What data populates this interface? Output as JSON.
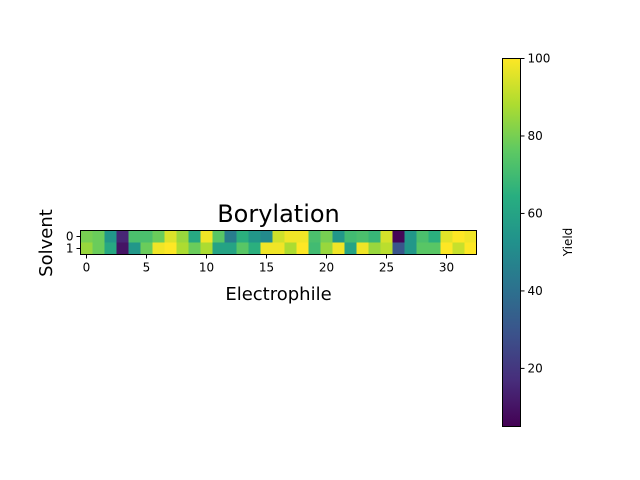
{
  "chart_data": {
    "type": "heatmap",
    "title": "Borylation",
    "xlabel": "Electrophile",
    "ylabel": "Solvent",
    "colorbar_label": "Yield",
    "colormap": "viridis",
    "vmin": 5,
    "vmax": 100,
    "x_ticks": [
      0,
      5,
      10,
      15,
      20,
      25,
      30
    ],
    "y_ticks": [
      0,
      1
    ],
    "colorbar_ticks": [
      20,
      40,
      60,
      80,
      100
    ],
    "rows": [
      {
        "label": "0",
        "values": [
          80,
          78,
          55,
          15,
          72,
          72,
          78,
          95,
          85,
          62,
          98,
          75,
          45,
          65,
          55,
          50,
          93,
          98,
          98,
          72,
          80,
          55,
          70,
          72,
          68,
          94,
          6,
          55,
          72,
          65,
          96,
          100,
          98
        ]
      },
      {
        "label": "1",
        "values": [
          85,
          78,
          62,
          10,
          55,
          78,
          98,
          100,
          88,
          78,
          88,
          60,
          60,
          75,
          65,
          98,
          98,
          88,
          100,
          70,
          85,
          98,
          60,
          98,
          85,
          90,
          30,
          55,
          75,
          75,
          100,
          92,
          100
        ]
      }
    ]
  }
}
